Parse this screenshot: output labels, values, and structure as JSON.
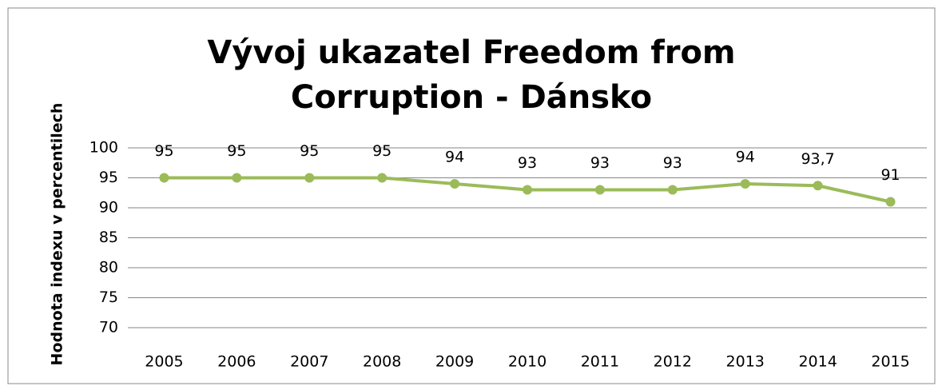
{
  "chart_data": {
    "type": "line",
    "title": "Vývoj ukazatel Freedom from Corruption - Dánsko",
    "y_label": "Hodnota indexu v percentilech",
    "categories": [
      "2005",
      "2006",
      "2007",
      "2008",
      "2009",
      "2010",
      "2011",
      "2012",
      "2013",
      "2014",
      "2015"
    ],
    "values": [
      95,
      95,
      95,
      95,
      94,
      93,
      93,
      93,
      94,
      93.7,
      91
    ],
    "value_labels": [
      "95",
      "95",
      "95",
      "95",
      "94",
      "93",
      "93",
      "93",
      "94",
      "93,7",
      "91"
    ],
    "color": "#9bbb59",
    "ylim": [
      70,
      100
    ],
    "yticks": [
      70,
      75,
      80,
      85,
      90,
      95,
      100
    ],
    "grid": true
  }
}
